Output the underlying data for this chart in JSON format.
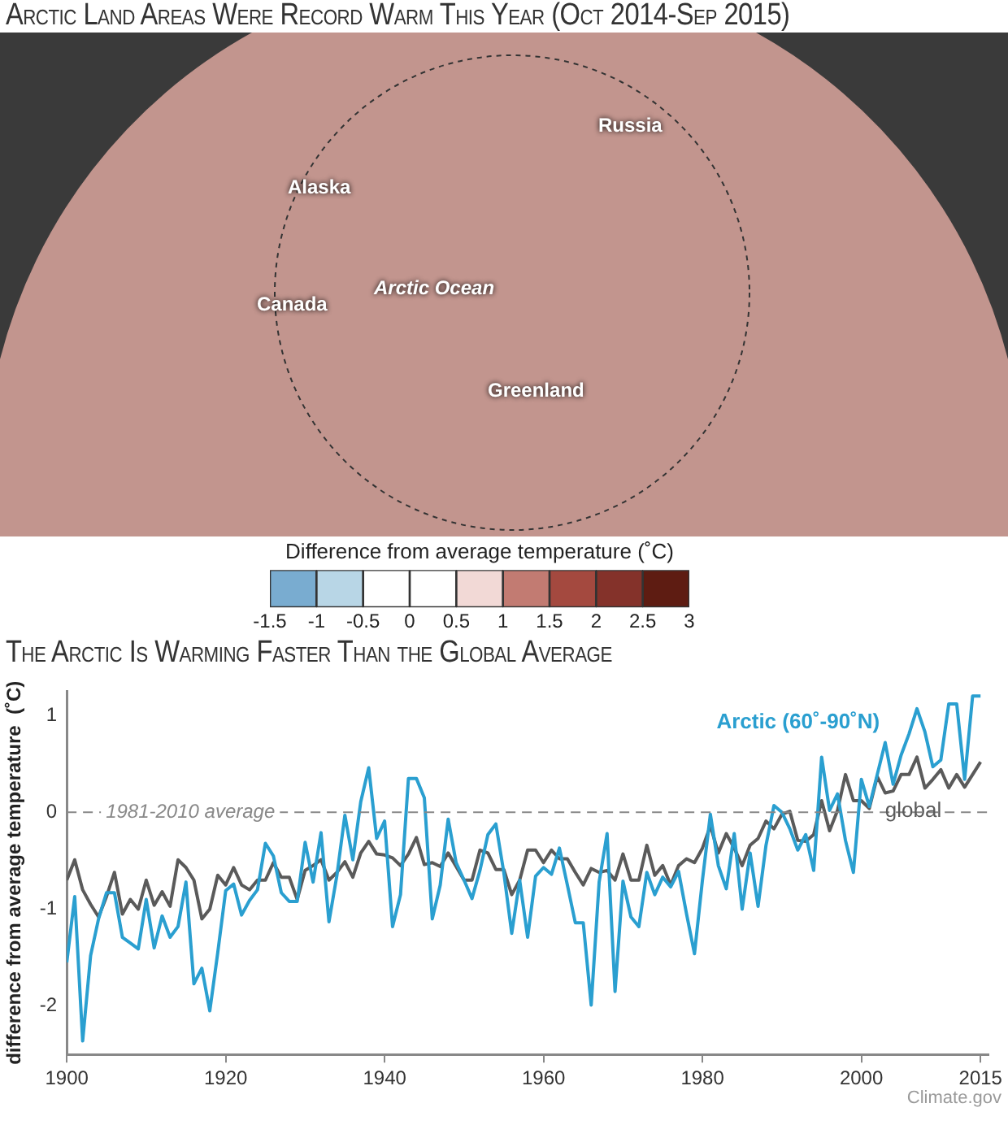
{
  "chart_data": [
    {
      "type": "bar",
      "orientation": "horizontal",
      "stacked": true,
      "title": "Arctic Land Areas Were Record Warm This Year (Oct 2014-Sep 2015)",
      "xlabel": "Difference from average temperature (˚C)",
      "categories": [
        null
      ],
      "series": [
        {
          "color": "#ffffff",
          "values": [
            -0.5
          ]
        },
        {
          "color": "#b8d6e6",
          "values": [
            -0.5
          ]
        },
        {
          "color": "#79acd0",
          "values": [
            -0.5
          ]
        },
        {
          "color": "#ffffff",
          "values": [
            0.5
          ]
        },
        {
          "color": "#f2d9d6",
          "values": [
            0.5
          ]
        },
        {
          "color": "#c27b72",
          "values": [
            0.5
          ]
        },
        {
          "color": "#a4493f",
          "values": [
            0.5
          ]
        },
        {
          "color": "#84322a",
          "values": [
            0.5
          ]
        },
        {
          "color": "#5e1c12",
          "values": [
            0.5
          ]
        }
      ],
      "xlim": [
        -1.5,
        3
      ],
      "xticks": [
        -1.5,
        -1,
        -0.5,
        0,
        0.5,
        1,
        1.5,
        2,
        2.5,
        3
      ],
      "grid": false,
      "annotations": [
        "Russia",
        "Alaska",
        "Arctic Ocean",
        "Canada",
        "Greenland"
      ]
    },
    {
      "type": "line",
      "title": "The Arctic Is Warming Faster Than the Global Average",
      "ylabel": "difference from average temperature  (˚C)",
      "x": [
        1900,
        1901,
        1902,
        1903,
        1904,
        1905,
        1906,
        1907,
        1908,
        1909,
        1910,
        1911,
        1912,
        1913,
        1914,
        1915,
        1916,
        1917,
        1918,
        1919,
        1920,
        1921,
        1922,
        1923,
        1924,
        1925,
        1926,
        1927,
        1928,
        1929,
        1930,
        1931,
        1932,
        1933,
        1934,
        1935,
        1936,
        1937,
        1938,
        1939,
        1940,
        1941,
        1942,
        1943,
        1944,
        1945,
        1946,
        1947,
        1948,
        1949,
        1950,
        1951,
        1952,
        1953,
        1954,
        1955,
        1956,
        1957,
        1958,
        1959,
        1960,
        1961,
        1962,
        1963,
        1964,
        1965,
        1966,
        1967,
        1968,
        1969,
        1970,
        1971,
        1972,
        1973,
        1974,
        1975,
        1976,
        1977,
        1978,
        1979,
        1980,
        1981,
        1982,
        1983,
        1984,
        1985,
        1986,
        1987,
        1988,
        1989,
        1990,
        1991,
        1992,
        1993,
        1994,
        1995,
        1996,
        1997,
        1998,
        1999,
        2000,
        2001,
        2002,
        2003,
        2004,
        2005,
        2006,
        2007,
        2008,
        2009,
        2010,
        2011,
        2012,
        2013,
        2014,
        2015
      ],
      "series": [
        {
          "name": "Arctic (60˚-90˚N)",
          "color": "#2a9fd0",
          "values": [
            -1.55,
            -0.87,
            -2.36,
            -1.48,
            -1.1,
            -0.83,
            -0.83,
            -1.29,
            -1.35,
            -1.41,
            -0.9,
            -1.4,
            -1.07,
            -1.29,
            -1.18,
            -0.72,
            -1.77,
            -1.61,
            -2.05,
            -1.45,
            -0.81,
            -0.74,
            -1.06,
            -0.91,
            -0.8,
            -0.32,
            -0.45,
            -0.83,
            -0.92,
            -0.92,
            -0.31,
            -0.72,
            -0.21,
            -1.13,
            -0.65,
            -0.03,
            -0.49,
            0.11,
            0.46,
            -0.27,
            -0.09,
            -1.18,
            -0.85,
            0.35,
            0.35,
            0.15,
            -1.1,
            -0.75,
            -0.07,
            -0.52,
            -0.7,
            -0.89,
            -0.6,
            -0.23,
            -0.12,
            -0.62,
            -1.25,
            -0.7,
            -1.29,
            -0.66,
            -0.57,
            -0.64,
            -0.37,
            -0.75,
            -1.14,
            -1.14,
            -1.99,
            -0.72,
            -0.22,
            -1.85,
            -0.71,
            -1.08,
            -1.18,
            -0.62,
            -0.85,
            -0.67,
            -0.77,
            -0.61,
            -1.05,
            -1.46,
            -0.7,
            -0.02,
            -0.55,
            -0.79,
            -0.22,
            -1.0,
            -0.42,
            -0.97,
            -0.34,
            0.07,
            0.0,
            -0.17,
            -0.39,
            -0.23,
            -0.6,
            0.57,
            0.02,
            0.19,
            -0.29,
            -0.62,
            0.34,
            0.06,
            0.39,
            0.72,
            0.29,
            0.59,
            0.81,
            1.07,
            0.83,
            0.47,
            0.54,
            1.12,
            1.12,
            0.34,
            1.2,
            1.2
          ]
        },
        {
          "name": "global",
          "color": "#5a5a5a",
          "values": [
            -0.7,
            -0.49,
            -0.8,
            -0.95,
            -1.08,
            -0.87,
            -0.62,
            -1.05,
            -0.9,
            -1.0,
            -0.7,
            -0.96,
            -0.82,
            -0.97,
            -0.49,
            -0.57,
            -0.7,
            -1.1,
            -1.0,
            -0.65,
            -0.75,
            -0.57,
            -0.75,
            -0.8,
            -0.7,
            -0.7,
            -0.52,
            -0.67,
            -0.67,
            -0.9,
            -0.6,
            -0.55,
            -0.49,
            -0.7,
            -0.62,
            -0.51,
            -0.67,
            -0.42,
            -0.3,
            -0.43,
            -0.44,
            -0.47,
            -0.55,
            -0.43,
            -0.26,
            -0.54,
            -0.52,
            -0.56,
            -0.42,
            -0.56,
            -0.7,
            -0.7,
            -0.39,
            -0.42,
            -0.59,
            -0.59,
            -0.85,
            -0.7,
            -0.39,
            -0.39,
            -0.52,
            -0.39,
            -0.48,
            -0.48,
            -0.62,
            -0.75,
            -0.58,
            -0.62,
            -0.6,
            -0.7,
            -0.43,
            -0.7,
            -0.7,
            -0.34,
            -0.65,
            -0.55,
            -0.75,
            -0.55,
            -0.48,
            -0.52,
            -0.37,
            -0.14,
            -0.42,
            -0.22,
            -0.37,
            -0.55,
            -0.34,
            -0.27,
            -0.09,
            -0.17,
            -0.02,
            0.01,
            -0.29,
            -0.3,
            -0.23,
            0.12,
            -0.19,
            0.02,
            0.39,
            0.12,
            0.12,
            0.04,
            0.37,
            0.2,
            0.22,
            0.39,
            0.39,
            0.57,
            0.25,
            0.34,
            0.44,
            0.25,
            0.39,
            0.26,
            0.39,
            0.52
          ]
        }
      ],
      "xlim": [
        1900,
        2016
      ],
      "xticks": [
        1900,
        1920,
        1940,
        1960,
        1980,
        2000,
        2015
      ],
      "ylim": [
        -2.5,
        1.25
      ],
      "yticks": [
        -2,
        -1,
        0,
        1
      ],
      "ref_lines": [
        {
          "axis": "y",
          "value": 0,
          "label": "1981-2010 average",
          "color": "#888888",
          "line_style": "dashed"
        }
      ],
      "grid": false,
      "marker": "none",
      "line_style": "solid",
      "annotations": [
        "Climate.gov"
      ]
    }
  ]
}
